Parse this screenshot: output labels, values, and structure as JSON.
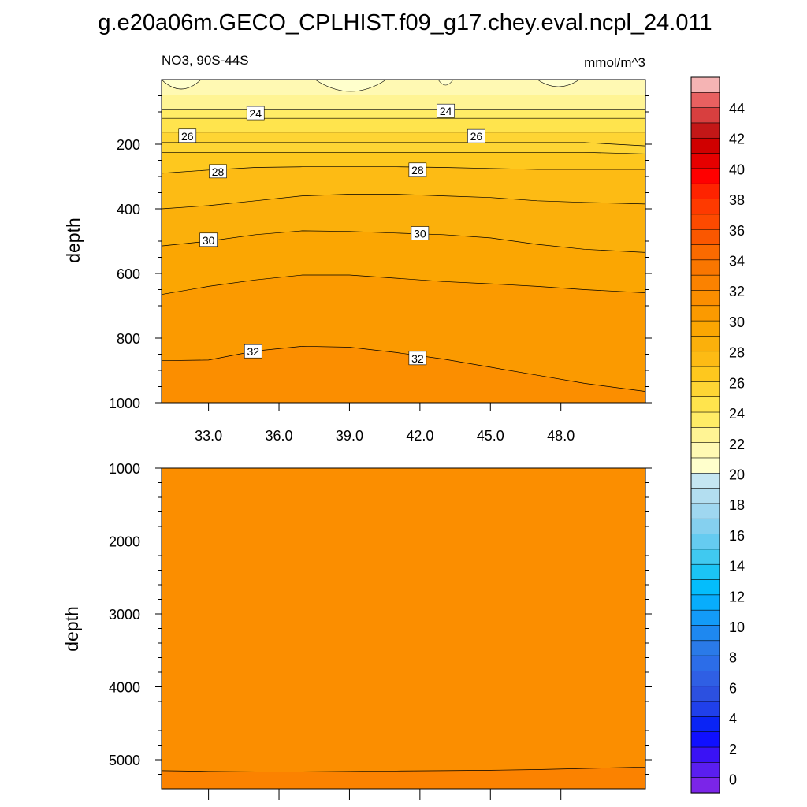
{
  "chart_data": [
    {
      "type": "filled-contour",
      "title": "g.e20a06m.GECO_CPLHIST.f09_g17.chey.eval.ncpl_24.011",
      "subtitle_left": "NO3, 90S-44S",
      "subtitle_right": "mmol/m^3",
      "ylabel": "depth",
      "ylim": [
        0,
        1000
      ],
      "xlim": [
        31.0,
        51.6
      ],
      "yticks": [
        200,
        400,
        600,
        800,
        1000
      ],
      "ytick_labels": [
        "200",
        "400",
        "600",
        "800",
        "1000"
      ],
      "xticks": [
        33,
        36,
        39,
        42,
        45,
        48
      ],
      "xtick_labels": [
        "33.0",
        "36.0",
        "39.0",
        "42.0",
        "45.0",
        "48.0"
      ],
      "x": [
        31.0,
        33.0,
        35.0,
        37.0,
        39.0,
        41.0,
        43.0,
        45.0,
        47.0,
        49.0,
        51.6
      ],
      "contour_lines": [
        {
          "level": 23,
          "depth": [
            48,
            48,
            48,
            48,
            48,
            48,
            48,
            48,
            48,
            48,
            48
          ]
        },
        {
          "level": 24,
          "depth": [
            92,
            92,
            92,
            92,
            92,
            92,
            92,
            92,
            92,
            92,
            92
          ]
        },
        {
          "level": 24.5,
          "depth": [
            120,
            120,
            120,
            120,
            120,
            120,
            120,
            120,
            120,
            120,
            120
          ]
        },
        {
          "level": 25,
          "depth": [
            140,
            140,
            140,
            140,
            140,
            140,
            140,
            140,
            140,
            140,
            140
          ]
        },
        {
          "level": 25.5,
          "depth": [
            163,
            163,
            163,
            163,
            163,
            163,
            163,
            163,
            163,
            163,
            163
          ]
        },
        {
          "level": 26,
          "depth": [
            195,
            195,
            195,
            195,
            195,
            195,
            195,
            195,
            195,
            195,
            205
          ]
        },
        {
          "level": 27,
          "depth": [
            225,
            225,
            225,
            225,
            225,
            225,
            225,
            225,
            225,
            225,
            230
          ]
        },
        {
          "level": 28,
          "depth": [
            290,
            280,
            272,
            270,
            270,
            270,
            272,
            275,
            278,
            278,
            278
          ]
        },
        {
          "level": 29,
          "depth": [
            400,
            390,
            375,
            360,
            355,
            355,
            360,
            365,
            375,
            380,
            385
          ]
        },
        {
          "level": 30,
          "depth": [
            515,
            500,
            480,
            468,
            470,
            475,
            480,
            490,
            510,
            525,
            535
          ]
        },
        {
          "level": 31,
          "depth": [
            665,
            640,
            620,
            605,
            605,
            615,
            625,
            632,
            640,
            650,
            660
          ]
        },
        {
          "level": 32,
          "depth": [
            870,
            868,
            840,
            825,
            828,
            845,
            865,
            890,
            915,
            940,
            965
          ]
        }
      ],
      "bottom_fill_level": 32.5,
      "surface_patches_level": 21,
      "contour_labels": [
        {
          "text": "24",
          "x": 35.0,
          "y": 105
        },
        {
          "text": "24",
          "x": 43.1,
          "y": 98
        },
        {
          "text": "26",
          "x": 32.1,
          "y": 175
        },
        {
          "text": "26",
          "x": 44.4,
          "y": 176
        },
        {
          "text": "28",
          "x": 33.4,
          "y": 285
        },
        {
          "text": "28",
          "x": 41.9,
          "y": 280
        },
        {
          "text": "30",
          "x": 33.0,
          "y": 497
        },
        {
          "text": "30",
          "x": 42.0,
          "y": 477
        },
        {
          "text": "32",
          "x": 34.9,
          "y": 842
        },
        {
          "text": "32",
          "x": 41.9,
          "y": 863
        }
      ]
    },
    {
      "type": "filled-contour",
      "ylabel": "depth",
      "ylim": [
        1000,
        5400
      ],
      "xlim": [
        31.0,
        51.6
      ],
      "yticks": [
        1000,
        2000,
        3000,
        4000,
        5000
      ],
      "ytick_labels": [
        "1000",
        "2000",
        "3000",
        "4000",
        "5000"
      ],
      "xticks": [
        33,
        36,
        39,
        42,
        45,
        48
      ],
      "x": [
        31.0,
        33.0,
        35.0,
        37.0,
        39.0,
        41.0,
        43.0,
        45.0,
        47.0,
        49.0,
        51.6
      ],
      "fill_level": 32.5,
      "contour_lines": [
        {
          "level": 33,
          "depth": [
            5150,
            5160,
            5165,
            5165,
            5160,
            5155,
            5150,
            5145,
            5135,
            5120,
            5100
          ]
        }
      ],
      "bottom_fill_level": 33.5
    },
    {
      "type": "colorbar",
      "labels": [
        "0",
        "2",
        "4",
        "6",
        "8",
        "10",
        "12",
        "14",
        "16",
        "18",
        "20",
        "22",
        "24",
        "26",
        "28",
        "30",
        "32",
        "34",
        "36",
        "38",
        "40",
        "42",
        "44"
      ],
      "colors": [
        "#7b25e8",
        "#5a1ef0",
        "#3a12f5",
        "#1010ff",
        "#0a24f5",
        "#2040ea",
        "#2c50e0",
        "#2f5fe4",
        "#2c6de8",
        "#2a7ae8",
        "#1e88f0",
        "#139bf8",
        "#08adfc",
        "#04bdfc",
        "#1bc4f5",
        "#40c9f0",
        "#65cbf0",
        "#85d0ef",
        "#9fd7f0",
        "#b3def0",
        "#c5e6f2",
        "#ffffcc",
        "#fff9b3",
        "#fff494",
        "#ffec66",
        "#ffe44d",
        "#fed534",
        "#fec81e",
        "#fdbb14",
        "#fbb00b",
        "#fba602",
        "#fb9a00",
        "#fb8e00",
        "#fb8200",
        "#f97600",
        "#fa6a00",
        "#fa5700",
        "#fd4a00",
        "#fe3a00",
        "#fe2300",
        "#ff0000",
        "#e60000",
        "#d00000",
        "#c31717",
        "#d83f3f",
        "#e86060",
        "#f5b4b4"
      ]
    }
  ]
}
